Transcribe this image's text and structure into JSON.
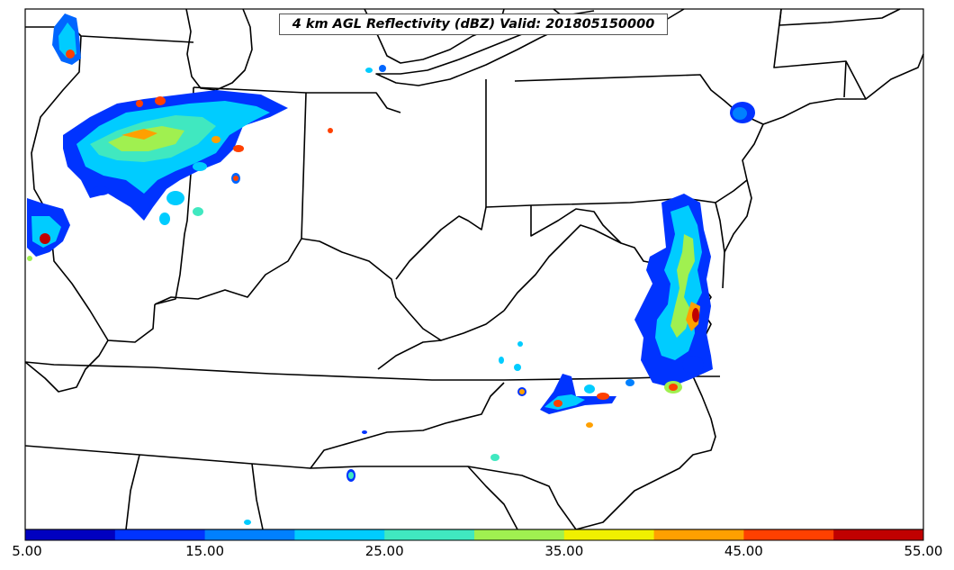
{
  "title": "4 km AGL Reflectivity (dBZ) Valid: 201805150000",
  "colorbar": {
    "min": 5.0,
    "max": 55.0,
    "tick_labels": [
      "5.00",
      "15.00",
      "25.00",
      "35.00",
      "45.00",
      "55.00"
    ],
    "colors": [
      "#0000c0",
      "#0033ff",
      "#0080ff",
      "#00ccff",
      "#40e8c0",
      "#a0f050",
      "#f0f000",
      "#ffa000",
      "#ff4000",
      "#c00000"
    ]
  },
  "chart_data": {
    "type": "heatmap",
    "title": "4 km AGL Reflectivity (dBZ) Valid: 201805150000",
    "variable": "Reflectivity",
    "units": "dBZ",
    "valid": "201805150000",
    "colorbar_range": [
      5.0,
      55.0
    ],
    "colorbar_levels": [
      5,
      10,
      15,
      20,
      25,
      30,
      35,
      40,
      45,
      50,
      55
    ],
    "tick_labels": [
      "5.00",
      "15.00",
      "25.00",
      "35.00",
      "45.00",
      "55.00"
    ]
  }
}
